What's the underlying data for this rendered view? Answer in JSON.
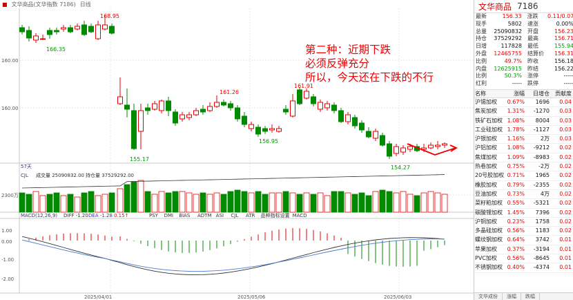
{
  "header": {
    "window_title": "文华商品(文华指数 7186)",
    "period": "日线"
  },
  "price_labels": {
    "h1": "168.95",
    "l1": "166.35",
    "h2": "161.26",
    "h3": "161.91",
    "l2": "155.17",
    "l3": "156.95",
    "l4": "154.27"
  },
  "y_axis": [
    "160.00",
    "160.00"
  ],
  "x_axis": [
    "2025/04/01",
    "2025/05/06",
    "2025/06/03"
  ],
  "volume_panel": {
    "period_label": "57天",
    "indicator": "CJL",
    "volume_text": "成交量 25090832.00",
    "oi_text": "持仓量 37529292.00",
    "axis_label": "2300万"
  },
  "macd_panel": {
    "indicator_text": "MACD(12,26,9)",
    "diff_text": "DIFF -1.20",
    "dea_text": "DEA -1.28",
    "macd_text": "0.15↑",
    "tabs": [
      "PSY",
      "DMI",
      "BIAS",
      "ADTM",
      "ASI",
      "CJL",
      "ATR",
      "品种指标设置",
      "MACD"
    ],
    "y_axis": [
      "1.00",
      "0.00",
      "-1.00",
      "-2.00"
    ]
  },
  "annotation": {
    "line1": "第二种：近期下跌",
    "line2": "必须反弹充分",
    "line3": "所以，今天还在下跌的不行"
  },
  "panel": {
    "name": "文华商品",
    "code": "7186",
    "quote": [
      {
        "l1": "最新",
        "v1": "156.33",
        "c1": "red",
        "l2": "涨跌",
        "v2": "0.11/0.07%",
        "c2": "red"
      },
      {
        "l1": "现手",
        "v1": "5802",
        "c1": "blk",
        "l2": "速涨",
        "v2": "0.00%",
        "c2": "blk"
      },
      {
        "l1": "总量",
        "v1": "25090832",
        "c1": "blk",
        "l2": "开盘",
        "v2": "156.23",
        "c2": "red"
      },
      {
        "l1": "持仓",
        "v1": "37529292",
        "c1": "blk",
        "l2": "最高",
        "v2": "156.71",
        "c2": "red"
      },
      {
        "l1": "日增",
        "v1": "117828",
        "c1": "blk",
        "l2": "最低",
        "v2": "155.94",
        "c2": "green"
      },
      {
        "l1": "外盘",
        "v1": "12465755",
        "c1": "red",
        "l2": "结算价",
        "v2": "156.31",
        "c2": "red"
      },
      {
        "l1": "比例",
        "v1": "49.7%",
        "c1": "red",
        "l2": "昨收",
        "v2": "156.18",
        "c2": "blk"
      },
      {
        "l1": "内盘",
        "v1": "12625915",
        "c1": "green",
        "l2": "昨结",
        "v2": "156.22",
        "c2": "blk"
      },
      {
        "l1": "比例",
        "v1": "50.3%",
        "c1": "green",
        "l2": "涨停",
        "v2": "-----",
        "c2": "blk"
      },
      {
        "l1": "红利",
        "v1": "-----",
        "c1": "blk",
        "l2": "跌停",
        "v2": "-----",
        "c2": "blk"
      }
    ],
    "cons_header": {
      "name": "名称",
      "chg": "涨幅",
      "wt": "日增仓",
      "gx": "贡献度"
    },
    "cons": [
      {
        "n": "沪锡加权",
        "c": "0.67%",
        "w": "1696",
        "g": "0.04",
        "cc": "red",
        "wc": "blk",
        "gc": "red"
      },
      {
        "n": "焦炭加权",
        "c": "1.31%",
        "w": "-1270",
        "cc": "red",
        "wc": "blk",
        "g": "0.03",
        "gc": "red"
      },
      {
        "n": "铁矿石加权",
        "c": "1.08%",
        "w": "8004",
        "cc": "red",
        "wc": "blk",
        "g": "0.03",
        "gc": "red"
      },
      {
        "n": "工业硅加权",
        "c": "1.78%",
        "w": "-1127",
        "cc": "red",
        "wc": "blk",
        "g": "0.03",
        "gc": "red"
      },
      {
        "n": "沪银加权",
        "c": "1.16%",
        "w": "2万",
        "cc": "red",
        "wc": "blk",
        "g": "0.03",
        "gc": "red"
      },
      {
        "n": "沪铝加权",
        "c": "1.08%",
        "w": "-9212",
        "cc": "red",
        "wc": "blk",
        "g": "0.02",
        "gc": "red"
      },
      {
        "n": "焦煤加权",
        "c": "1.09%",
        "w": "-8983",
        "cc": "red",
        "wc": "blk",
        "g": "0.02",
        "gc": "red"
      },
      {
        "n": "热卷加权",
        "c": "0.75%",
        "w": "-2万",
        "cc": "red",
        "wc": "blk",
        "g": "0.02",
        "gc": "red"
      },
      {
        "n": "20号胶加权",
        "c": "0.71%",
        "w": "1965",
        "cc": "red",
        "wc": "blk",
        "g": "0.02",
        "gc": "red"
      },
      {
        "n": "橡胶加权",
        "c": "0.79%",
        "w": "-2355",
        "cc": "red",
        "wc": "blk",
        "g": "0.02",
        "gc": "red"
      },
      {
        "n": "豆油加权",
        "c": "0.73%",
        "w": "4万",
        "cc": "red",
        "wc": "blk",
        "g": "0.02",
        "gc": "red"
      },
      {
        "n": "菜籽粕加权",
        "c": "0.55%",
        "w": "-5321",
        "cc": "red",
        "wc": "blk",
        "g": "0.02",
        "gc": "red"
      },
      {
        "n": "碳酸锂加权",
        "c": "1.45%",
        "w": "7396",
        "cc": "red",
        "wc": "blk",
        "g": "0.02",
        "gc": "red"
      },
      {
        "n": "沪铜加权",
        "c": "0.23%",
        "w": "1758",
        "cc": "red",
        "wc": "blk",
        "g": "0.02",
        "gc": "red"
      },
      {
        "n": "多晶硅加权",
        "c": "0.56%",
        "w": "1183",
        "cc": "red",
        "wc": "blk",
        "g": "0.02",
        "gc": "red"
      },
      {
        "n": "螺纹钢加权",
        "c": "0.64%",
        "w": "3742",
        "cc": "red",
        "wc": "blk",
        "g": "0.01",
        "gc": "red"
      },
      {
        "n": "苹果加权",
        "c": "0.37%",
        "w": "-3194",
        "cc": "red",
        "wc": "blk",
        "g": "0.01",
        "gc": "red"
      },
      {
        "n": "PVC加权",
        "c": "0.56%",
        "w": "-8645",
        "cc": "red",
        "wc": "blk",
        "g": "0.01",
        "gc": "red"
      },
      {
        "n": "不锈钢加权",
        "c": "0.40%",
        "w": "-4374",
        "cc": "red",
        "wc": "blk",
        "g": "0.01",
        "gc": "red"
      }
    ],
    "tabs": [
      "文华成份",
      "涨幅",
      "跌幅"
    ]
  },
  "colors": {
    "up": "#e60000",
    "down": "#008a00",
    "grid": "#e3e3e3",
    "annotation": "#e60000"
  }
}
